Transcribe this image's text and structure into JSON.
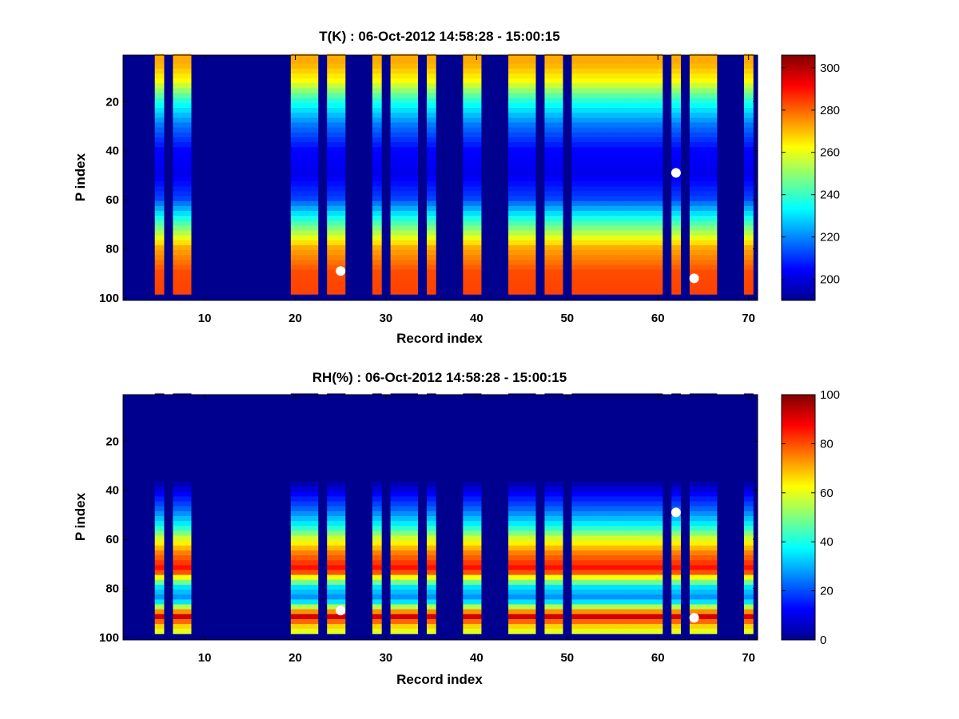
{
  "chart_data": [
    {
      "type": "heatmap",
      "title": "T(K) : 06-Oct-2012 14:58:28 - 15:00:15",
      "xlabel": "Record index",
      "ylabel": "P index",
      "xlim": [
        1,
        71
      ],
      "ylim": [
        1,
        101
      ],
      "x_ticks": [
        "10",
        "20",
        "30",
        "40",
        "50",
        "60",
        "70"
      ],
      "y_ticks": [
        "20",
        "40",
        "60",
        "80",
        "100"
      ],
      "colorbar": {
        "min": 190,
        "max": 306,
        "ticks": [
          "200",
          "220",
          "240",
          "260",
          "280",
          "300"
        ]
      },
      "background_color": "#00008f",
      "columns": [
        5,
        7,
        8,
        20,
        21,
        22,
        24,
        25,
        29,
        31,
        32,
        33,
        35,
        39,
        40,
        44,
        45,
        46,
        48,
        49,
        51,
        52,
        53,
        54,
        55,
        56,
        57,
        58,
        59,
        60,
        62,
        64,
        65,
        66,
        70
      ],
      "profile": {
        "p": [
          1,
          5,
          12,
          20,
          30,
          40,
          50,
          60,
          70,
          80,
          90,
          98
        ],
        "value": [
          272,
          272,
          262,
          238,
          218,
          205,
          202,
          212,
          242,
          272,
          283,
          284
        ]
      },
      "markers": [
        {
          "x": 25,
          "y": 89
        },
        {
          "x": 62,
          "y": 49
        },
        {
          "x": 64,
          "y": 92
        }
      ]
    },
    {
      "type": "heatmap",
      "title": "RH(%) : 06-Oct-2012 14:58:28 - 15:00:15",
      "xlabel": "Record index",
      "ylabel": "P index",
      "xlim": [
        1,
        71
      ],
      "ylim": [
        1,
        101
      ],
      "x_ticks": [
        "10",
        "20",
        "30",
        "40",
        "50",
        "60",
        "70"
      ],
      "y_ticks": [
        "20",
        "40",
        "60",
        "80",
        "100"
      ],
      "colorbar": {
        "min": 0,
        "max": 100,
        "ticks": [
          "0",
          "20",
          "40",
          "60",
          "80",
          "100"
        ]
      },
      "background_color": "#00008f",
      "columns": [
        5,
        7,
        8,
        20,
        21,
        22,
        24,
        25,
        29,
        31,
        32,
        33,
        35,
        39,
        40,
        44,
        45,
        46,
        48,
        49,
        51,
        52,
        53,
        54,
        55,
        56,
        57,
        58,
        59,
        60,
        62,
        64,
        65,
        66,
        70
      ],
      "profile": {
        "p": [
          1,
          36,
          42,
          48,
          55,
          60,
          66,
          70,
          73,
          76,
          80,
          85,
          88,
          92,
          95,
          98
        ],
        "value": [
          0,
          0,
          12,
          22,
          38,
          58,
          75,
          82,
          88,
          62,
          35,
          25,
          55,
          92,
          70,
          60
        ]
      },
      "markers": [
        {
          "x": 25,
          "y": 89
        },
        {
          "x": 62,
          "y": 49
        },
        {
          "x": 64,
          "y": 92
        }
      ]
    }
  ]
}
